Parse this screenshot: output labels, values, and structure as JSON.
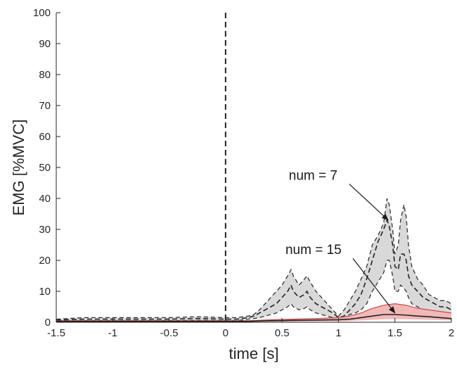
{
  "chart_data": {
    "type": "area",
    "xlabel": "time [s]",
    "ylabel": "EMG [%MVC]",
    "xlim": [
      -1.5,
      2
    ],
    "ylim": [
      0,
      100
    ],
    "xticks": [
      "-1.5",
      "-1",
      "-0.5",
      "0",
      "0.5",
      "1",
      "1.5",
      "2"
    ],
    "yticks": [
      "0",
      "10",
      "20",
      "30",
      "40",
      "50",
      "60",
      "70",
      "80",
      "90",
      "100"
    ],
    "grid": false,
    "legend": "none",
    "vertical_marker_x": 0,
    "colors": {
      "gray_band": "#d9d9d9",
      "red_band": "#f2b8b8",
      "red_line": "#c84848",
      "axis": "#262626"
    },
    "annotations": [
      {
        "text": "num = 7",
        "x": 0.56,
        "y": 46,
        "arrow_to": [
          1.44,
          33
        ]
      },
      {
        "text": "num = 15",
        "x": 0.53,
        "y": 22,
        "arrow_to": [
          1.5,
          3
        ]
      }
    ],
    "series": [
      {
        "name": "num = 7",
        "x": [
          -1.5,
          -1.25,
          -1,
          -0.75,
          -0.5,
          -0.25,
          0,
          0.1,
          0.2,
          0.25,
          0.3,
          0.35,
          0.4,
          0.45,
          0.5,
          0.55,
          0.58,
          0.6,
          0.65,
          0.7,
          0.72,
          0.75,
          0.8,
          0.85,
          0.9,
          0.95,
          1,
          1.05,
          1.1,
          1.15,
          1.2,
          1.25,
          1.3,
          1.35,
          1.4,
          1.43,
          1.45,
          1.48,
          1.5,
          1.53,
          1.55,
          1.58,
          1.6,
          1.62,
          1.65,
          1.7,
          1.75,
          1.8,
          1.85,
          1.9,
          1.95,
          2
        ],
        "upper": [
          1,
          1.5,
          1.5,
          1.5,
          1.5,
          1.8,
          1.5,
          1.5,
          2,
          2.5,
          4,
          6,
          8,
          10,
          12,
          15,
          17,
          15,
          12,
          14,
          15,
          13,
          10,
          8,
          6,
          4,
          2,
          4,
          7,
          10,
          14,
          18,
          25,
          28,
          32,
          40,
          38,
          30,
          22,
          25,
          33,
          38,
          34,
          25,
          18,
          14,
          12,
          9,
          8,
          7,
          7,
          6
        ],
        "mean": [
          0.7,
          1,
          1,
          1,
          1,
          1.2,
          1,
          1,
          1.5,
          2,
          3,
          4,
          5,
          6,
          8,
          10,
          12,
          10,
          8,
          9,
          10,
          8,
          6,
          5,
          4,
          3,
          1.5,
          2,
          4,
          6,
          9,
          14,
          20,
          26,
          30,
          33,
          31,
          25,
          18,
          17,
          22,
          22,
          20,
          15,
          12,
          10,
          8,
          7,
          6,
          5,
          5,
          4
        ],
        "lower": [
          0.3,
          0.5,
          0.5,
          0.5,
          0.5,
          0.6,
          0.5,
          0.5,
          1,
          1.2,
          1.5,
          2,
          2.5,
          3,
          4,
          5,
          6,
          5,
          4,
          4.5,
          5,
          4,
          3,
          2.5,
          2,
          1.5,
          1,
          1.5,
          2.5,
          3,
          4,
          6,
          10,
          13,
          16,
          20,
          20,
          15,
          10,
          10,
          12,
          11,
          10,
          8,
          6,
          5,
          4,
          3,
          3,
          2,
          2,
          1.5
        ]
      },
      {
        "name": "num = 15",
        "x": [
          -1.5,
          -1,
          -0.5,
          0,
          0.2,
          0.4,
          0.6,
          0.8,
          1,
          1.1,
          1.2,
          1.3,
          1.4,
          1.5,
          1.6,
          1.7,
          1.8,
          1.9,
          2
        ],
        "upper": [
          0.5,
          0.5,
          0.5,
          0.5,
          0.5,
          0.8,
          1,
          1.2,
          1.5,
          2,
          3,
          4.5,
          5.5,
          6,
          5.5,
          4.5,
          4,
          3.5,
          3
        ],
        "mean": [
          0.3,
          0.3,
          0.3,
          0.3,
          0.3,
          0.5,
          0.6,
          0.7,
          0.8,
          1,
          1.5,
          2,
          2.5,
          2.5,
          2.3,
          2,
          1.8,
          1.5,
          1.2
        ],
        "lower": [
          0.1,
          0.1,
          0.1,
          0.1,
          0.1,
          0.2,
          0.2,
          0.3,
          0.3,
          0.4,
          0.6,
          0.8,
          1,
          1,
          1,
          0.9,
          0.8,
          0.7,
          0.6
        ]
      }
    ]
  }
}
